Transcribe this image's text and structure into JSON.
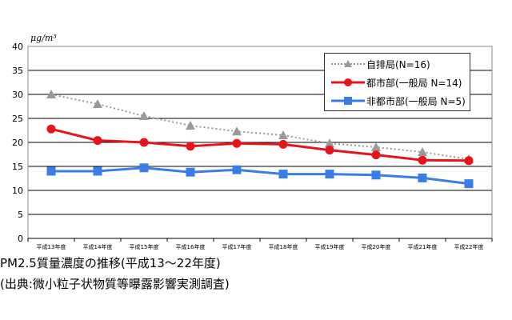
{
  "chart_data": {
    "type": "line",
    "title": "",
    "ylabel": "μg/m³",
    "xlabel": "",
    "ylim": [
      0,
      40
    ],
    "yticks": [
      0,
      5,
      10,
      15,
      20,
      25,
      30,
      35,
      40
    ],
    "grid": true,
    "legend_position": "top-right",
    "categories": [
      "平成13年度",
      "平成14年度",
      "平成15年度",
      "平成16年度",
      "平成17年度",
      "平成18年度",
      "平成19年度",
      "平成20年度",
      "平成21年度",
      "平成22年度"
    ],
    "series": [
      {
        "name": "自排局(N=16)",
        "color": "#999999",
        "marker": "triangle",
        "dashed": true,
        "values": [
          30.0,
          28.0,
          25.5,
          23.5,
          22.3,
          21.5,
          19.8,
          19.0,
          18.0,
          16.5
        ]
      },
      {
        "name": "都市部(一般局 N=14)",
        "color": "#e8141c",
        "marker": "circle",
        "dashed": false,
        "values": [
          22.8,
          20.4,
          20.0,
          19.2,
          19.8,
          19.6,
          18.4,
          17.4,
          16.3,
          16.2
        ]
      },
      {
        "name": "非都市部(一般局 N=5)",
        "color": "#3a7de6",
        "marker": "square",
        "dashed": false,
        "values": [
          14.0,
          14.0,
          14.7,
          13.8,
          14.3,
          13.4,
          13.4,
          13.2,
          12.6,
          11.4
        ]
      }
    ]
  },
  "captions": {
    "line1": "PM2.5質量濃度の推移(平成13〜22年度)",
    "line2": "(出典:微小粒子状物質等曝露影響実測調査)"
  }
}
